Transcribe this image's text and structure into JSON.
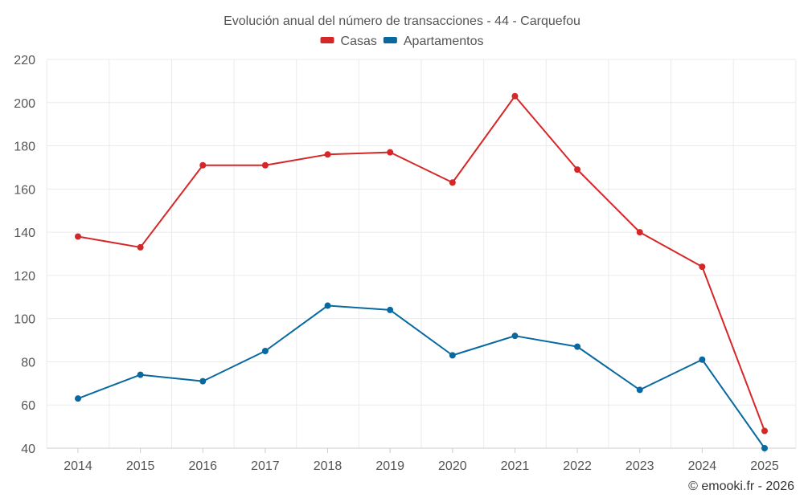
{
  "chart_data": {
    "type": "line",
    "title": "Evolución anual del número de transacciones - 44 - Carquefou",
    "categories": [
      "2014",
      "2015",
      "2016",
      "2017",
      "2018",
      "2019",
      "2020",
      "2021",
      "2022",
      "2023",
      "2024",
      "2025"
    ],
    "series": [
      {
        "name": "Casas",
        "color": "#d62728",
        "values": [
          138,
          133,
          171,
          171,
          176,
          177,
          163,
          203,
          169,
          140,
          124,
          48
        ]
      },
      {
        "name": "Apartamentos",
        "color": "#0868a0",
        "values": [
          63,
          74,
          71,
          85,
          106,
          104,
          83,
          92,
          87,
          67,
          81,
          40
        ]
      }
    ],
    "yticks": [
      40,
      60,
      80,
      100,
      120,
      140,
      160,
      180,
      200,
      220
    ],
    "ylim": [
      40,
      220
    ],
    "xlabel": "",
    "ylabel": "",
    "grid": true,
    "legend_position": "top-center"
  },
  "credit": "© emooki.fr - 2026"
}
